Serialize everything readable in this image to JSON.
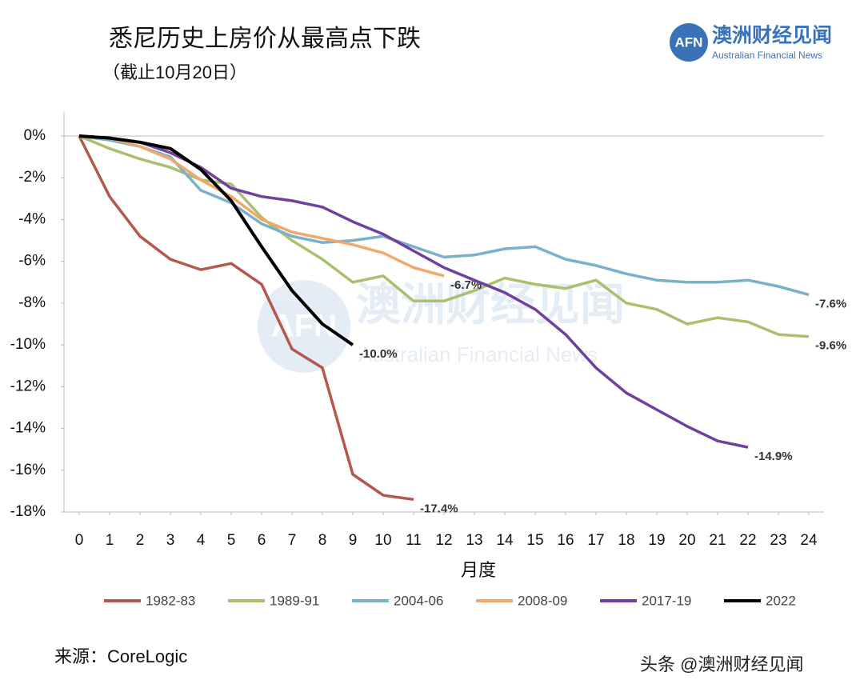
{
  "chart_data": {
    "type": "line",
    "title": "悉尼历史上房价从最高点下跌",
    "subtitle": "（截止10月20日）",
    "x_label": "月度",
    "x": [
      0,
      1,
      2,
      3,
      4,
      5,
      6,
      7,
      8,
      9,
      10,
      11,
      12,
      13,
      14,
      15,
      16,
      17,
      18,
      19,
      20,
      21,
      22,
      23,
      24
    ],
    "xlim": [
      -0.5,
      24.5
    ],
    "xticks": [
      0,
      1,
      2,
      3,
      4,
      5,
      6,
      7,
      8,
      9,
      10,
      11,
      12,
      13,
      14,
      15,
      16,
      17,
      18,
      19,
      20,
      21,
      22,
      23,
      24
    ],
    "ylim": [
      -18,
      0
    ],
    "yticks": [
      {
        "value": 0,
        "label": "0%"
      },
      {
        "value": -2,
        "label": "-2%"
      },
      {
        "value": -4,
        "label": "-4%"
      },
      {
        "value": -6,
        "label": "-6%"
      },
      {
        "value": -8,
        "label": "-8%"
      },
      {
        "value": -10,
        "label": "-10%"
      },
      {
        "value": -12,
        "label": "-12%"
      },
      {
        "value": -14,
        "label": "-14%"
      },
      {
        "value": -16,
        "label": "-16%"
      },
      {
        "value": -18,
        "label": "-18%"
      }
    ],
    "legend": "bottom",
    "series": [
      {
        "name": "1982-83",
        "color": "#b5584c",
        "values": [
          0,
          -2.9,
          -4.8,
          -5.9,
          -6.4,
          -6.1,
          -7.1,
          -10.2,
          -11.1,
          -16.2,
          -17.2,
          -17.4,
          null,
          null,
          null,
          null,
          null,
          null,
          null,
          null,
          null,
          null,
          null,
          null,
          null
        ],
        "value_labels": [
          null,
          null,
          null,
          null,
          null,
          null,
          null,
          null,
          null,
          null,
          null,
          "-17.4%",
          null,
          null,
          null,
          null,
          null,
          null,
          null,
          null,
          null,
          null,
          null,
          null,
          null
        ]
      },
      {
        "name": "1989-91",
        "color": "#a9c16f",
        "values": [
          0,
          -0.6,
          -1.1,
          -1.5,
          -2.1,
          -2.3,
          -3.9,
          -5.0,
          -5.9,
          -7.0,
          -6.7,
          -7.9,
          -7.9,
          -7.4,
          -6.8,
          -7.1,
          -7.3,
          -6.9,
          -8.0,
          -8.3,
          -9.0,
          -8.7,
          -8.9,
          -9.5,
          -9.6
        ],
        "value_labels": [
          null,
          null,
          null,
          null,
          null,
          null,
          null,
          null,
          null,
          null,
          null,
          null,
          null,
          null,
          null,
          null,
          null,
          null,
          null,
          null,
          null,
          null,
          null,
          null,
          "-9.6%"
        ]
      },
      {
        "name": "2004-06",
        "color": "#79b0cc",
        "values": [
          0,
          -0.2,
          -0.5,
          -1.0,
          -2.6,
          -3.2,
          -4.2,
          -4.8,
          -5.1,
          -5.0,
          -4.8,
          -5.3,
          -5.8,
          -5.7,
          -5.4,
          -5.3,
          -5.9,
          -6.2,
          -6.6,
          -6.9,
          -7.0,
          -7.0,
          -6.9,
          -7.2,
          -7.6
        ],
        "value_labels": [
          null,
          null,
          null,
          null,
          null,
          null,
          null,
          null,
          null,
          null,
          null,
          null,
          null,
          null,
          null,
          null,
          null,
          null,
          null,
          null,
          null,
          null,
          null,
          null,
          "-7.6%"
        ]
      },
      {
        "name": "2008-09",
        "color": "#f1a86a",
        "values": [
          0,
          -0.1,
          -0.5,
          -1.1,
          -2.1,
          -2.9,
          -4.0,
          -4.6,
          -4.9,
          -5.2,
          -5.6,
          -6.3,
          -6.7,
          null,
          null,
          null,
          null,
          null,
          null,
          null,
          null,
          null,
          null,
          null,
          null
        ],
        "value_labels": [
          null,
          null,
          null,
          null,
          null,
          null,
          null,
          null,
          null,
          null,
          null,
          null,
          "-6.7%",
          null,
          null,
          null,
          null,
          null,
          null,
          null,
          null,
          null,
          null,
          null,
          null
        ]
      },
      {
        "name": "2017-19",
        "color": "#7040a0",
        "values": [
          0,
          -0.1,
          -0.3,
          -0.8,
          -1.5,
          -2.5,
          -2.9,
          -3.1,
          -3.4,
          -4.1,
          -4.7,
          -5.5,
          -6.3,
          -6.9,
          -7.5,
          -8.3,
          -9.5,
          -11.1,
          -12.3,
          -13.1,
          -13.9,
          -14.6,
          -14.9,
          null,
          null
        ],
        "value_labels": [
          null,
          null,
          null,
          null,
          null,
          null,
          null,
          null,
          null,
          null,
          null,
          null,
          null,
          null,
          null,
          null,
          null,
          null,
          null,
          null,
          null,
          null,
          "-14.9%",
          null,
          null
        ]
      },
      {
        "name": "2022",
        "color": "#000000",
        "values": [
          0,
          -0.1,
          -0.3,
          -0.6,
          -1.6,
          -3.1,
          -5.3,
          -7.4,
          -9.0,
          -10.0,
          null,
          null,
          null,
          null,
          null,
          null,
          null,
          null,
          null,
          null,
          null,
          null,
          null,
          null,
          null
        ],
        "value_labels": [
          null,
          null,
          null,
          null,
          null,
          null,
          null,
          null,
          null,
          "-10.0%",
          null,
          null,
          null,
          null,
          null,
          null,
          null,
          null,
          null,
          null,
          null,
          null,
          null,
          null,
          null
        ]
      }
    ]
  },
  "source": "来源：CoreLogic",
  "logo": {
    "mark": "AFN",
    "name": "澳洲财经见闻",
    "english": "Australian Financial News"
  },
  "watermark": "头条 @澳洲财经见闻"
}
